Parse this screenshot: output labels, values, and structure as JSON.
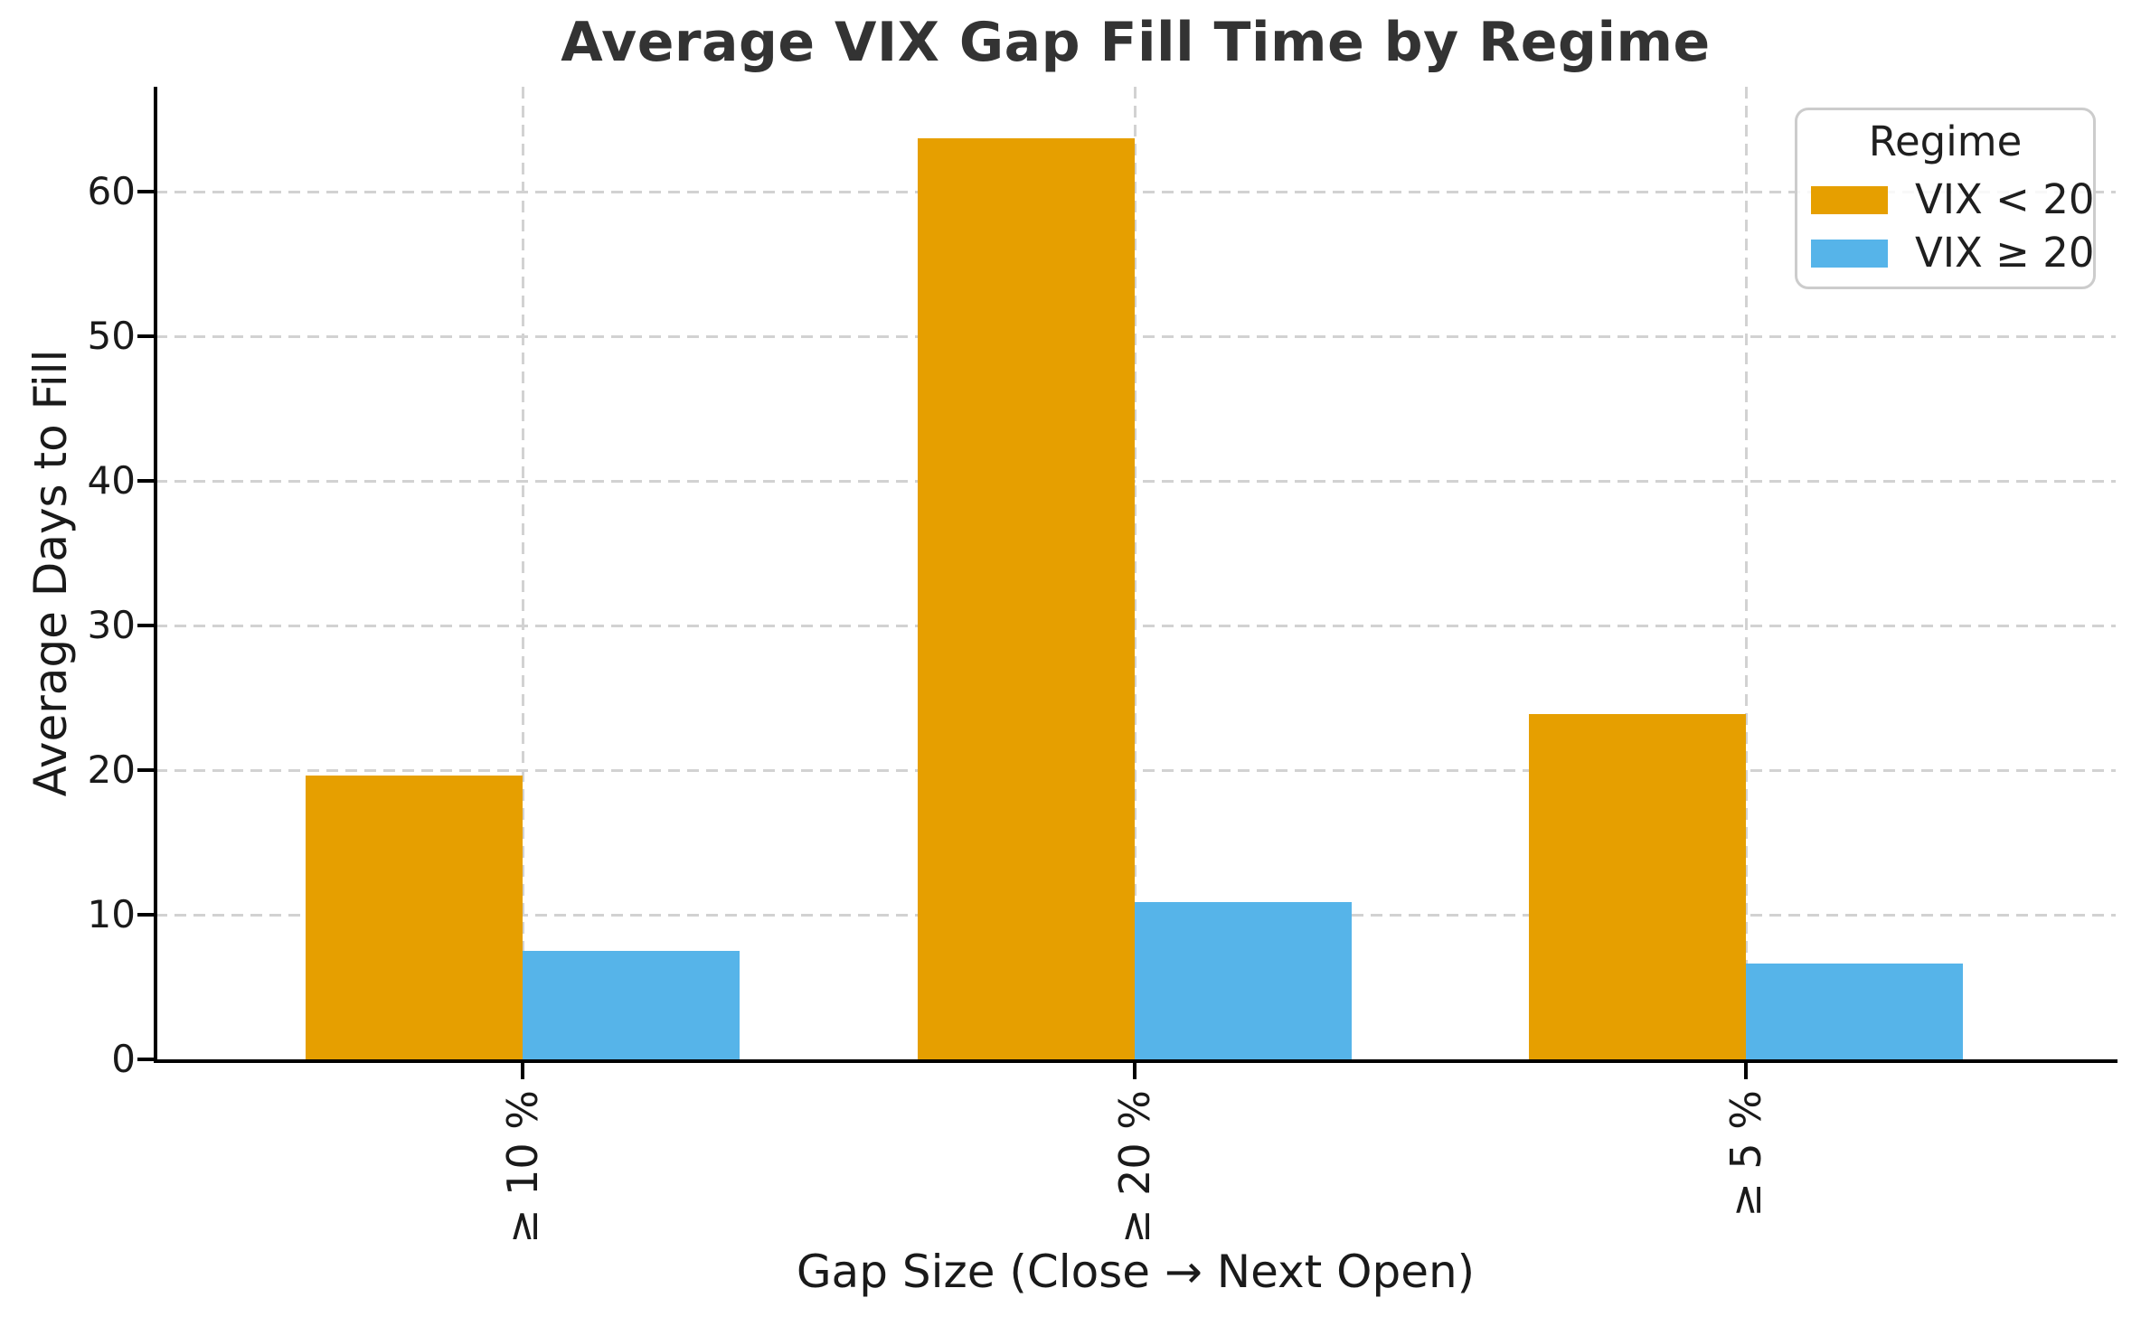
{
  "chart_data": {
    "type": "bar",
    "title": "Average VIX Gap Fill Time by Regime",
    "xlabel": "Gap Size (Close → Next Open)",
    "ylabel": "Average Days to Fill",
    "categories": [
      "≥ 10 %",
      "≥ 20 %",
      "≥ 5 %"
    ],
    "series": [
      {
        "name": "VIX < 20",
        "color": "#E69F00",
        "values": [
          19.6,
          63.7,
          23.9
        ]
      },
      {
        "name": "VIX ≥ 20",
        "color": "#56B4E9",
        "values": [
          7.5,
          10.9,
          6.6
        ]
      }
    ],
    "legend": {
      "title": "Regime",
      "position": "upper right"
    },
    "yticks": [
      0,
      10,
      20,
      30,
      40,
      50,
      60
    ],
    "ylim": [
      0,
      67.25
    ],
    "grid": true,
    "grid_style": "dashed",
    "axis_color": "#000000",
    "grid_color": "#d2d2d2",
    "text_color": "#1a1a1a",
    "title_color": "#333333",
    "background_color": "#ffffff"
  }
}
